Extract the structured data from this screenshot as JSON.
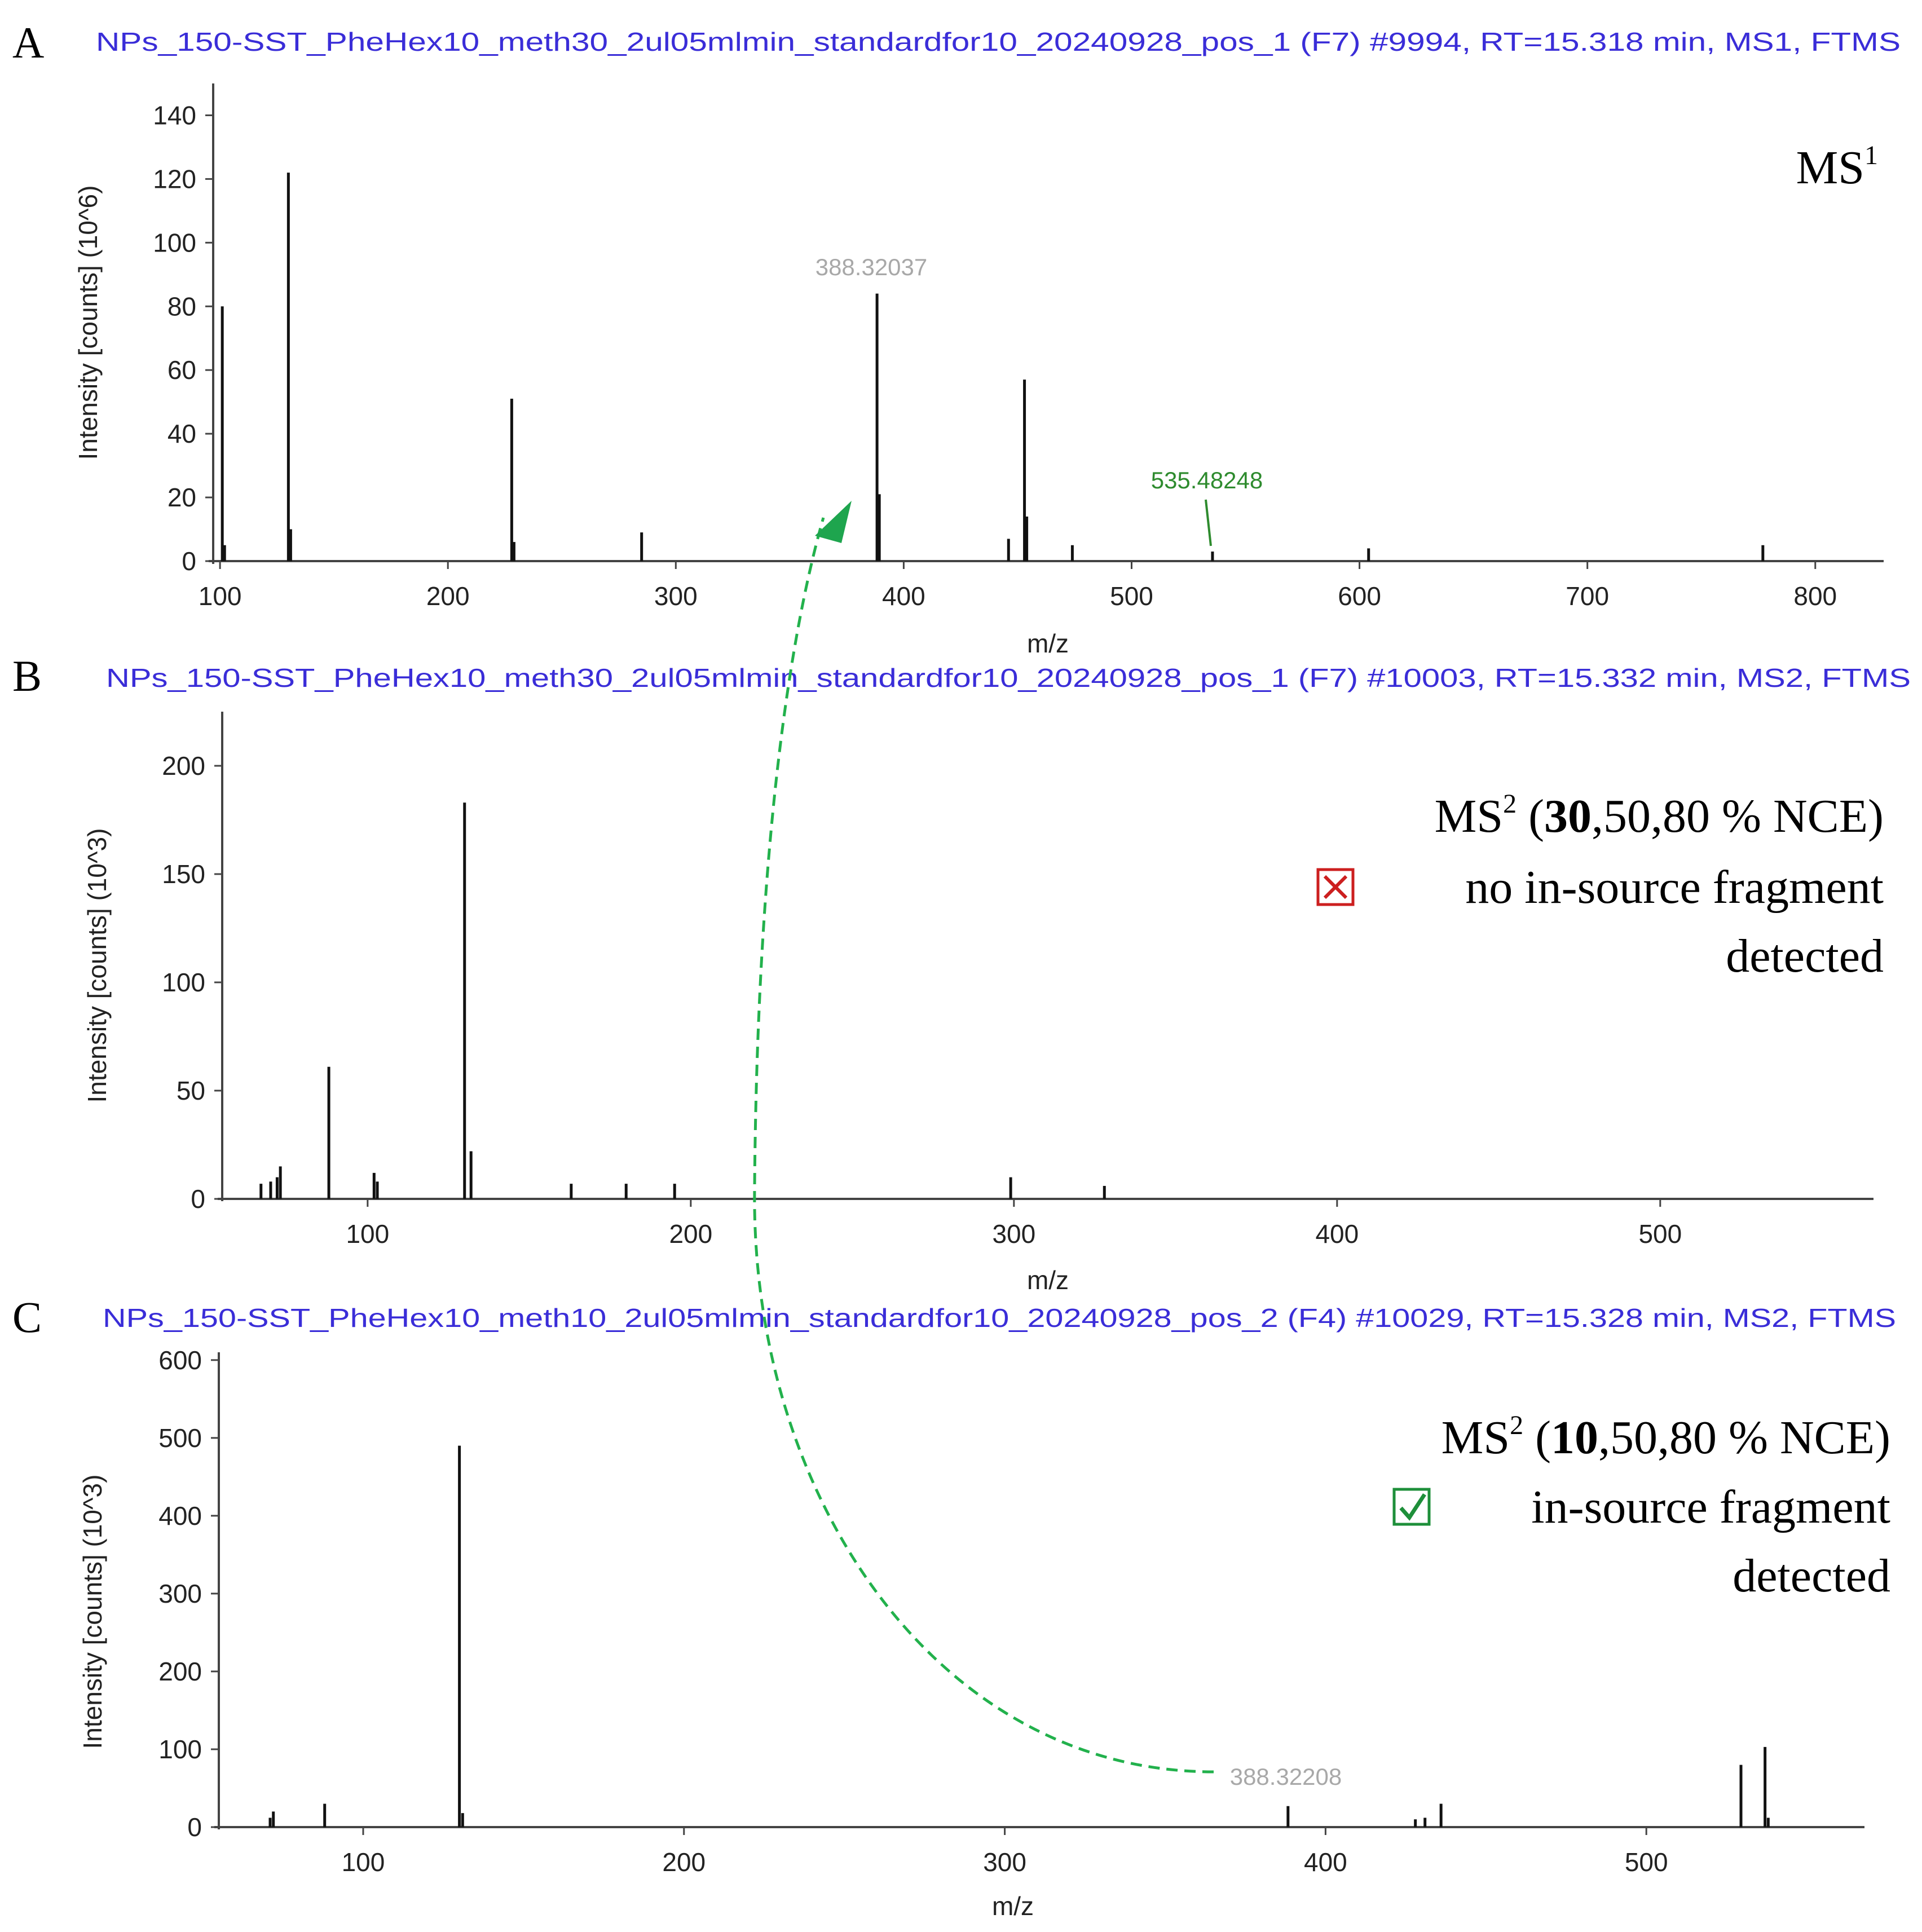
{
  "chart_data": [
    {
      "panel": "A",
      "type": "bar",
      "header": "NPs_150-SST_PheHex10_meth30_2ul05mlmin_standardfor10_20240928_pos_1 (F7) #9994, RT=15.318 min, MS1, FTMS",
      "annotation": {
        "main": "MS",
        "sup": "1"
      },
      "xlabel": "m/z",
      "ylabel": "Intensity [counts] (10^6)",
      "xlim": [
        97,
        830
      ],
      "ylim": [
        0,
        150
      ],
      "xticks": [
        100,
        200,
        300,
        400,
        500,
        600,
        700,
        800
      ],
      "yticks": [
        0,
        20,
        40,
        60,
        80,
        100,
        120,
        140
      ],
      "peak_labels": [
        {
          "text": "388.32037",
          "x": 388.32,
          "color": "#a8a8a8"
        },
        {
          "text": "535.48248",
          "x": 535.48,
          "color": "#2e8b2e"
        }
      ],
      "x": [
        101,
        102,
        130,
        131,
        228,
        229,
        285,
        388.3,
        389.3,
        446,
        453,
        454,
        474,
        535.5,
        604,
        777
      ],
      "y": [
        80,
        5,
        122,
        10,
        51,
        6,
        9,
        84,
        21,
        7,
        57,
        14,
        5,
        3,
        4,
        5
      ]
    },
    {
      "panel": "B",
      "type": "bar",
      "header": "NPs_150-SST_PheHex10_meth30_2ul05mlmin_standardfor10_20240928_pos_1 (F7) #10003, RT=15.332 min, MS2, FTMS",
      "annotation": {
        "prefix": "MS",
        "sup": "2",
        "open": " (",
        "bold": "30",
        "rest": ",50,80 % NCE)",
        "status_line1": "no in-source fragment",
        "status_line2": "detected"
      },
      "xlabel": "m/z",
      "ylabel": "Intensity [counts] (10^3)",
      "xlim": [
        55,
        566
      ],
      "ylim": [
        0,
        225
      ],
      "xticks": [
        100,
        200,
        300,
        400,
        500
      ],
      "yticks": [
        0,
        50,
        100,
        150,
        200
      ],
      "x": [
        67,
        70,
        72,
        73,
        88,
        102,
        103,
        130,
        132,
        163,
        180,
        195,
        299,
        328
      ],
      "y": [
        7,
        8,
        10,
        15,
        61,
        12,
        8,
        183,
        22,
        7,
        7,
        7,
        10,
        6
      ]
    },
    {
      "panel": "C",
      "type": "bar",
      "header": "NPs_150-SST_PheHex10_meth10_2ul05mlmin_standardfor10_20240928_pos_2 (F4) #10029, RT=15.328 min, MS2, FTMS",
      "annotation": {
        "prefix": "MS",
        "sup": "2",
        "open": " (",
        "bold": "10",
        "rest": ",50,80 % NCE)",
        "status_line1": "in-source fragment",
        "status_line2": "detected"
      },
      "xlabel": "m/z",
      "ylabel": "Intensity [counts] (10^3)",
      "xlim": [
        55,
        568
      ],
      "ylim": [
        0,
        610
      ],
      "xticks": [
        100,
        200,
        300,
        400,
        500
      ],
      "yticks": [
        0,
        100,
        200,
        300,
        400,
        500,
        600
      ],
      "peak_labels": [
        {
          "text": "388.32208",
          "x": 388.32,
          "color": "#a8a8a8"
        }
      ],
      "x": [
        71,
        72,
        88,
        130,
        131,
        388.3,
        428,
        431,
        436,
        529.5,
        537,
        538
      ],
      "y": [
        12,
        20,
        30,
        490,
        18,
        27,
        10,
        12,
        30,
        80,
        103,
        12
      ]
    }
  ]
}
